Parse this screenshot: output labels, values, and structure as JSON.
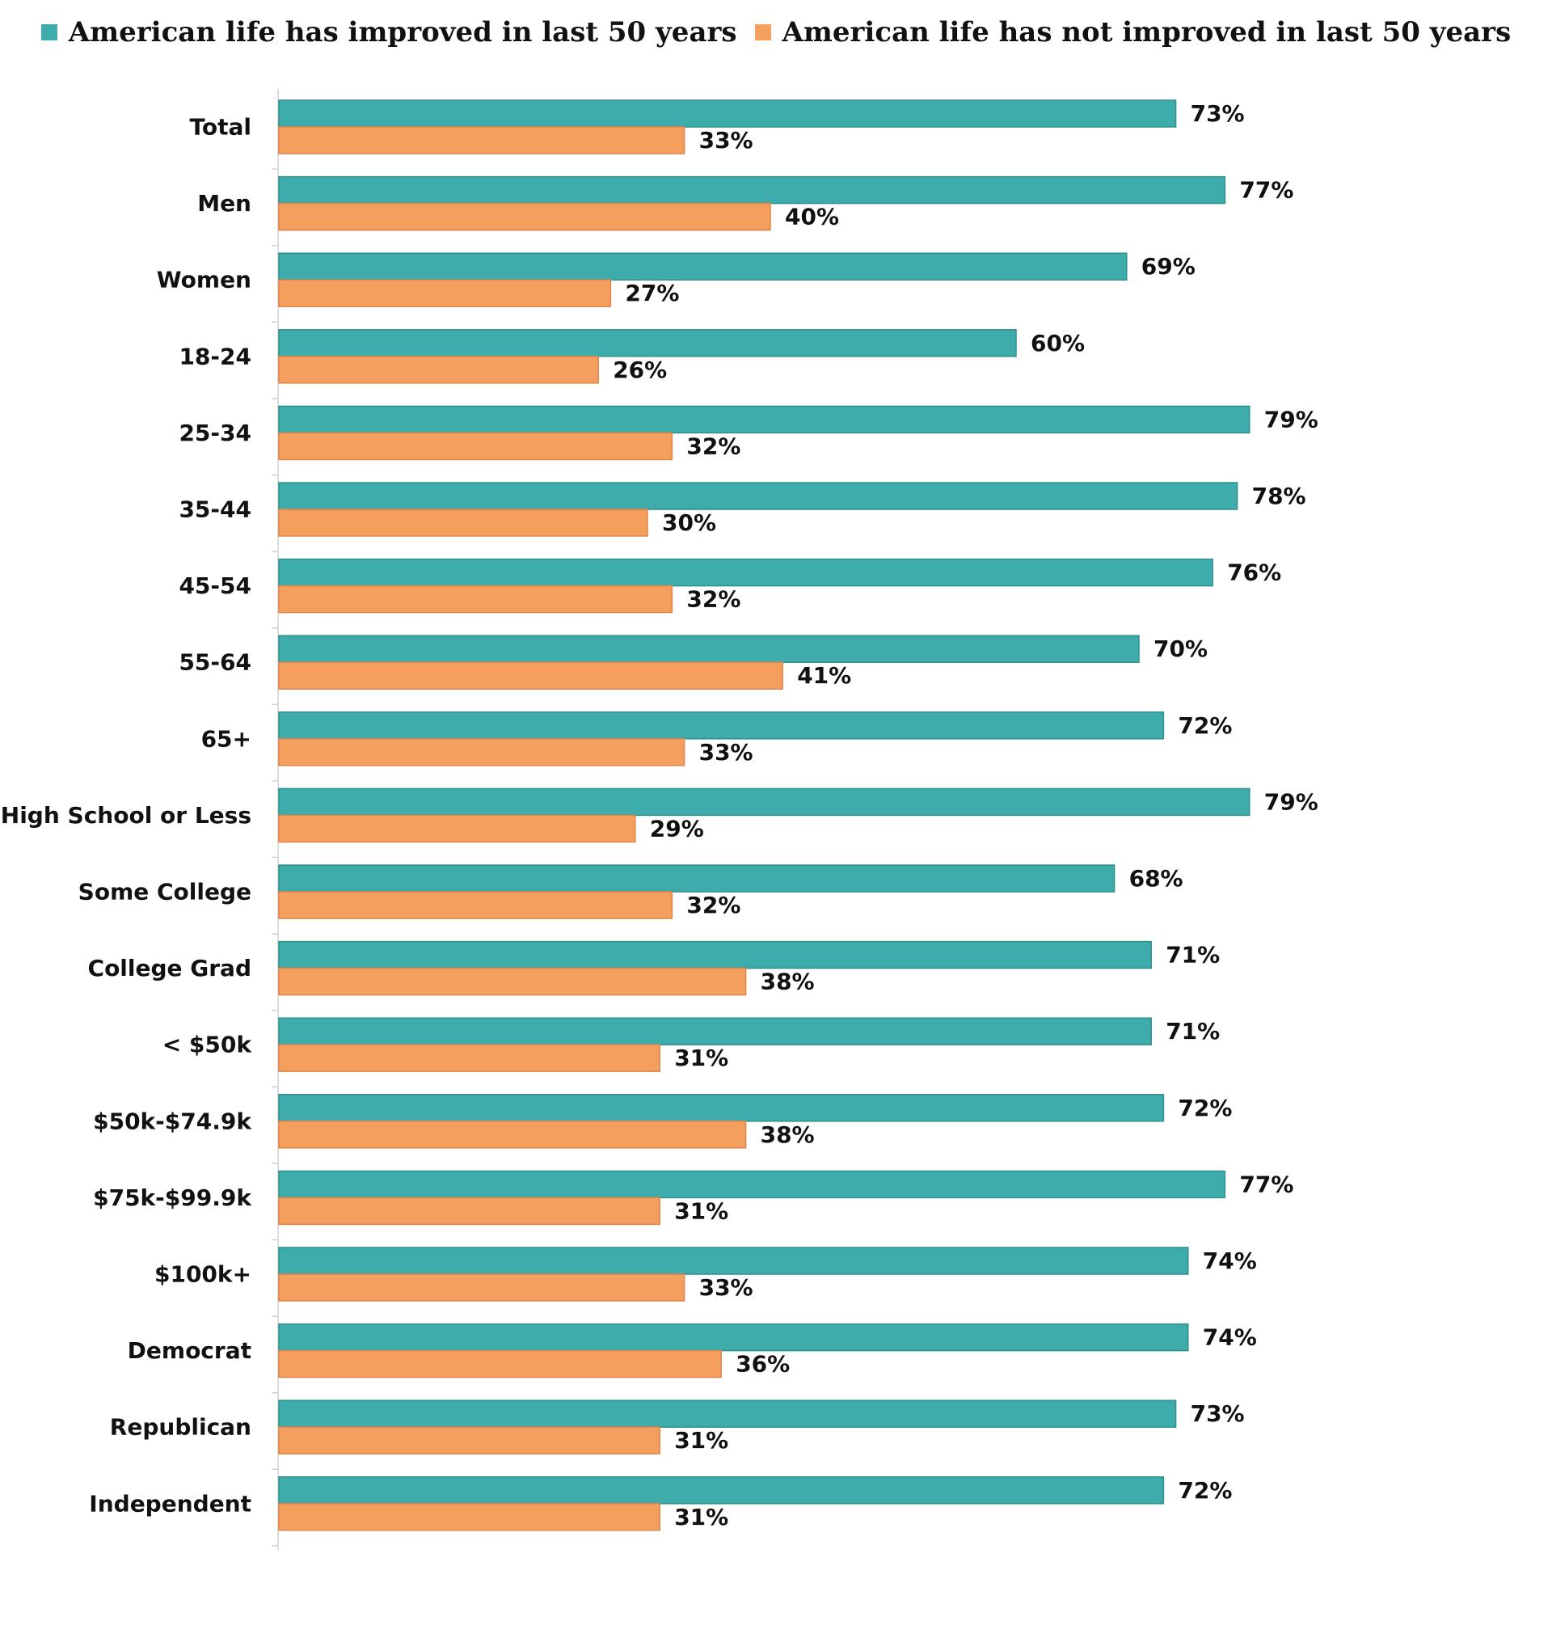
{
  "chart_data": {
    "type": "bar",
    "orientation": "horizontal",
    "categories": [
      "Total",
      "Men",
      "Women",
      "18-24",
      "25-34",
      "35-44",
      "45-54",
      "55-64",
      "65+",
      "High School or Less",
      "Some College",
      "College Grad",
      "< $50k",
      "$50k-$74.9k",
      "$75k-$99.9k",
      "$100k+",
      "Democrat",
      "Republican",
      "Independent"
    ],
    "series": [
      {
        "name": "American life has improved in last 50 years",
        "color": "#3dacaa",
        "values": [
          73,
          77,
          69,
          60,
          79,
          78,
          76,
          70,
          72,
          79,
          68,
          71,
          71,
          72,
          77,
          74,
          74,
          73,
          72
        ],
        "labels": [
          "73%",
          "77%",
          "69%",
          "60%",
          "79%",
          "78%",
          "76%",
          "70%",
          "72%",
          "79%",
          "68%",
          "71%",
          "71%",
          "72%",
          "77%",
          "74%",
          "74%",
          "73%",
          "72%"
        ]
      },
      {
        "name": "American life has not improved in last 50 years",
        "color": "#f59f5f",
        "values": [
          33,
          40,
          27,
          26,
          32,
          30,
          32,
          41,
          33,
          29,
          32,
          38,
          31,
          38,
          31,
          33,
          36,
          31,
          31
        ],
        "labels": [
          "33%",
          "40%",
          "27%",
          "26%",
          "32%",
          "30%",
          "32%",
          "41%",
          "33%",
          "29%",
          "32%",
          "38%",
          "31%",
          "38%",
          "31%",
          "33%",
          "36%",
          "31%",
          "31%"
        ]
      }
    ],
    "xlim": [
      0,
      100
    ],
    "legend_position": "top",
    "grid": false,
    "title": "",
    "xlabel": "",
    "ylabel": ""
  }
}
